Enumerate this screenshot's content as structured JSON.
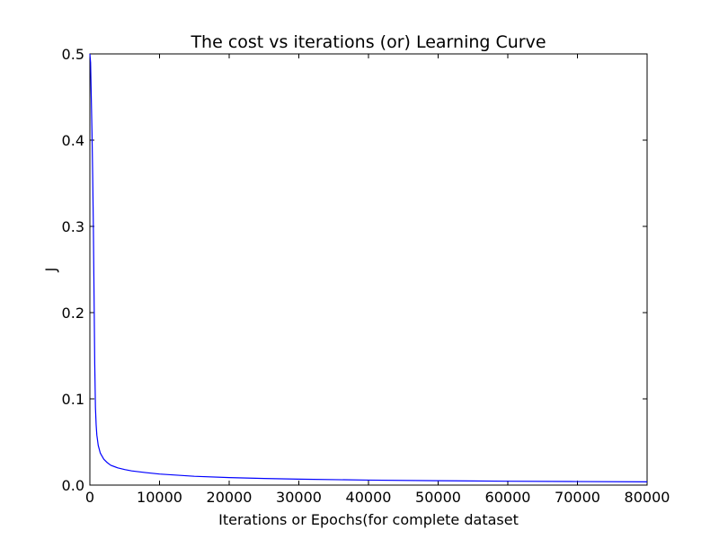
{
  "chart_data": {
    "type": "line",
    "title": "The cost vs iterations (or) Learning Curve",
    "xlabel": "Iterations or Epochs(for complete dataset",
    "ylabel": "J",
    "xlim": [
      0,
      80000
    ],
    "ylim": [
      0.0,
      0.5
    ],
    "xticks": [
      0,
      10000,
      20000,
      30000,
      40000,
      50000,
      60000,
      70000,
      80000
    ],
    "xtick_labels": [
      "0",
      "10000",
      "20000",
      "30000",
      "40000",
      "50000",
      "60000",
      "70000",
      "80000"
    ],
    "yticks": [
      0.0,
      0.1,
      0.2,
      0.3,
      0.4,
      0.5
    ],
    "ytick_labels": [
      "0.0",
      "0.1",
      "0.2",
      "0.3",
      "0.4",
      "0.5"
    ],
    "grid": false,
    "legend": "none",
    "line_color": "#0000ff",
    "series": [
      {
        "x": [
          0,
          100,
          200,
          300,
          400,
          500,
          600,
          700,
          800,
          900,
          1000,
          1200,
          1500,
          2000,
          2500,
          3000,
          4000,
          5000,
          6000,
          8000,
          10000,
          15000,
          20000,
          25000,
          30000,
          40000,
          50000,
          60000,
          70000,
          80000
        ],
        "values": [
          0.5,
          0.49,
          0.45,
          0.41,
          0.36,
          0.3,
          0.22,
          0.14,
          0.09,
          0.07,
          0.058,
          0.046,
          0.037,
          0.03,
          0.026,
          0.023,
          0.02,
          0.018,
          0.0165,
          0.0145,
          0.0128,
          0.0102,
          0.0087,
          0.0077,
          0.0069,
          0.0058,
          0.0051,
          0.0045,
          0.0041,
          0.0038
        ]
      }
    ]
  }
}
